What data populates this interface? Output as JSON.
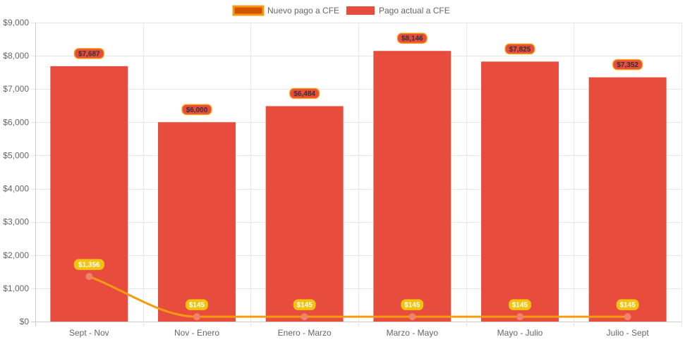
{
  "chart_data": {
    "type": "bar",
    "categories": [
      "Sept - Nov",
      "Nov - Enero",
      "Enero - Marzo",
      "Marzo - Mayo",
      "Mayo - Julio",
      "Julio - Sept"
    ],
    "series": [
      {
        "name": "Nuevo pago a CFE",
        "type": "line",
        "values": [
          1356,
          145,
          145,
          145,
          145,
          145
        ],
        "labels": [
          "$1,356",
          "$145",
          "$145",
          "$145",
          "$145",
          "$145"
        ],
        "color": "#f39c12",
        "point_color": "#f1836c",
        "legend_fill": "#d35400",
        "label_bg": "#f1c40f",
        "label_text_color": "#ffffff"
      },
      {
        "name": "Pago actual a CFE",
        "type": "bar",
        "values": [
          7687,
          6000,
          6484,
          8146,
          7825,
          7352
        ],
        "labels": [
          "$7,687",
          "$6,000",
          "$6,484",
          "$8,146",
          "$7,825",
          "$7,352"
        ],
        "color": "#e74c3c",
        "label_bg": "#e74c3c",
        "label_border": "#f39c12",
        "label_text_color": "#333333"
      }
    ],
    "y_ticks": [
      "$0",
      "$1,000",
      "$2,000",
      "$3,000",
      "$4,000",
      "$5,000",
      "$6,000",
      "$7,000",
      "$8,000",
      "$9,000"
    ],
    "ylim": [
      0,
      9000
    ],
    "title": "",
    "xlabel": "",
    "ylabel": "",
    "grid": true,
    "legend_position": "top"
  }
}
